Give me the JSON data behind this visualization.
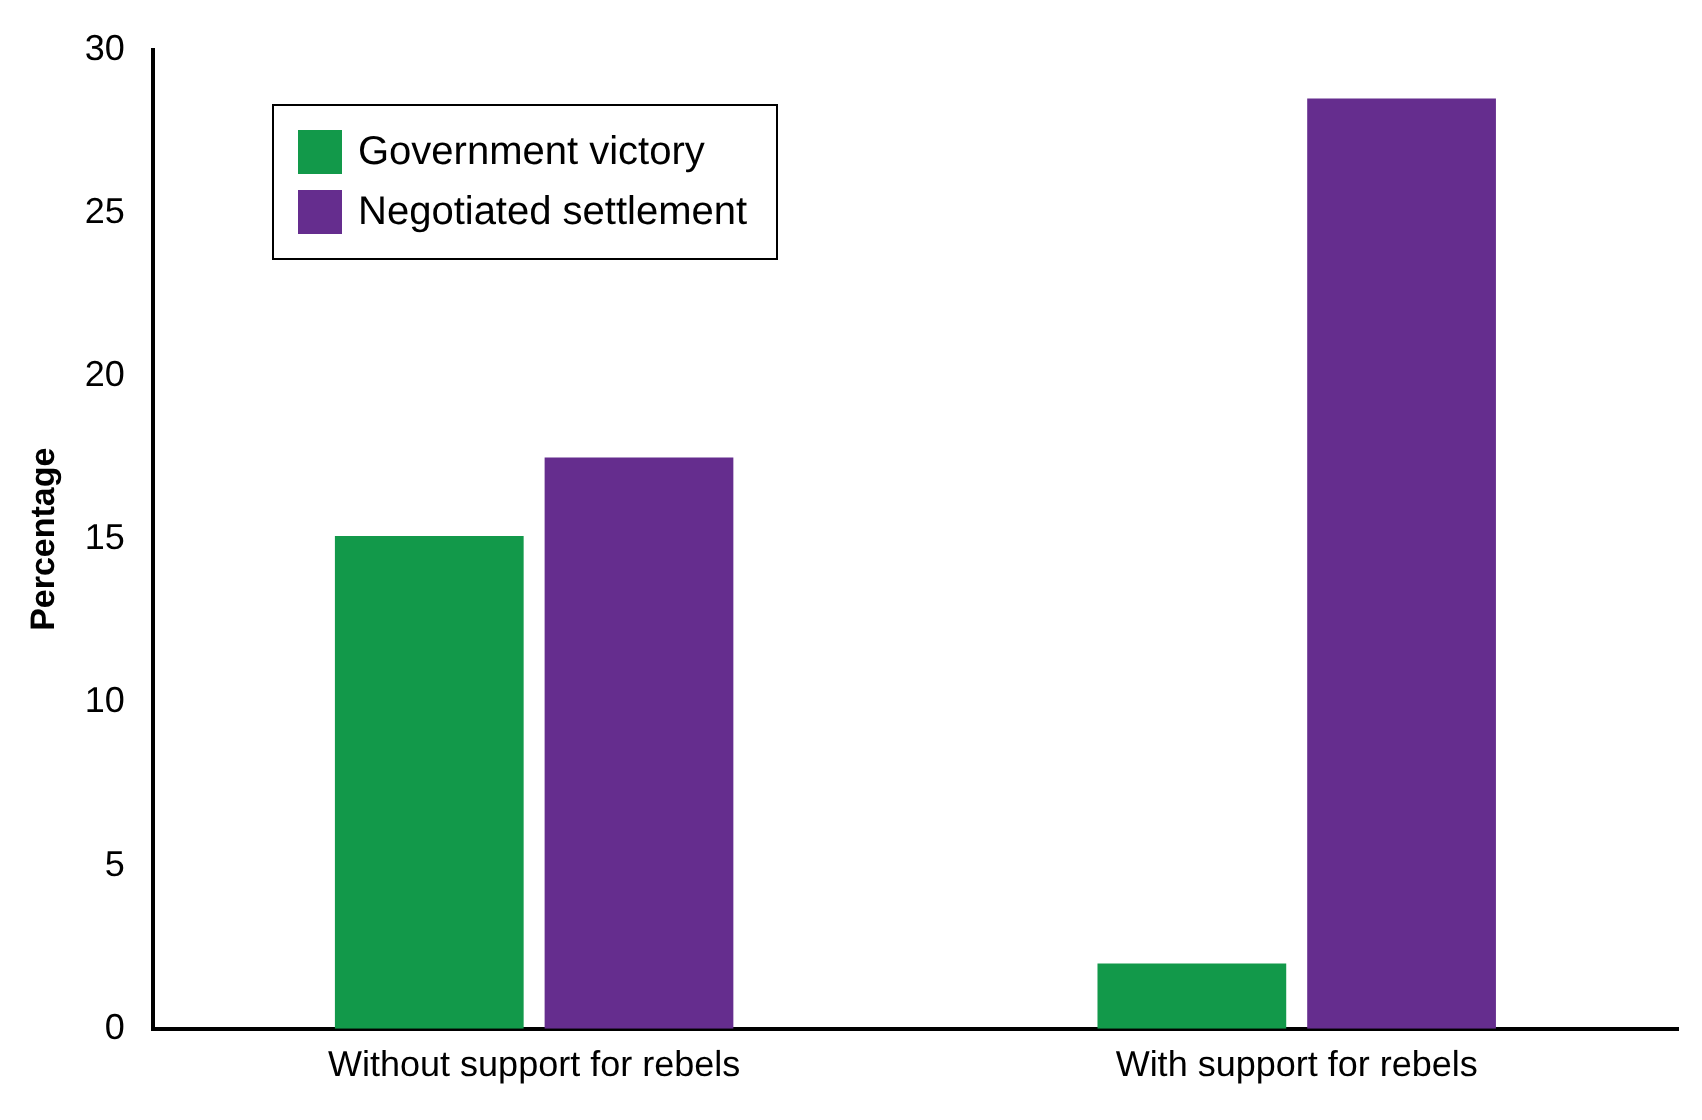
{
  "chart_data": {
    "type": "bar",
    "ylabel": "Percentage",
    "categories": [
      "Without support for rebels",
      "With support for rebels"
    ],
    "series": [
      {
        "name": "Government victory",
        "color": "#12994a",
        "values": [
          15.1,
          2.0
        ]
      },
      {
        "name": "Negotiated settlement",
        "color": "#652d8e",
        "values": [
          17.5,
          28.5
        ]
      }
    ],
    "ylim": [
      0,
      30
    ],
    "yticks": [
      0,
      5,
      10,
      15,
      20,
      25,
      30
    ],
    "grid": false,
    "legend": "top left"
  }
}
